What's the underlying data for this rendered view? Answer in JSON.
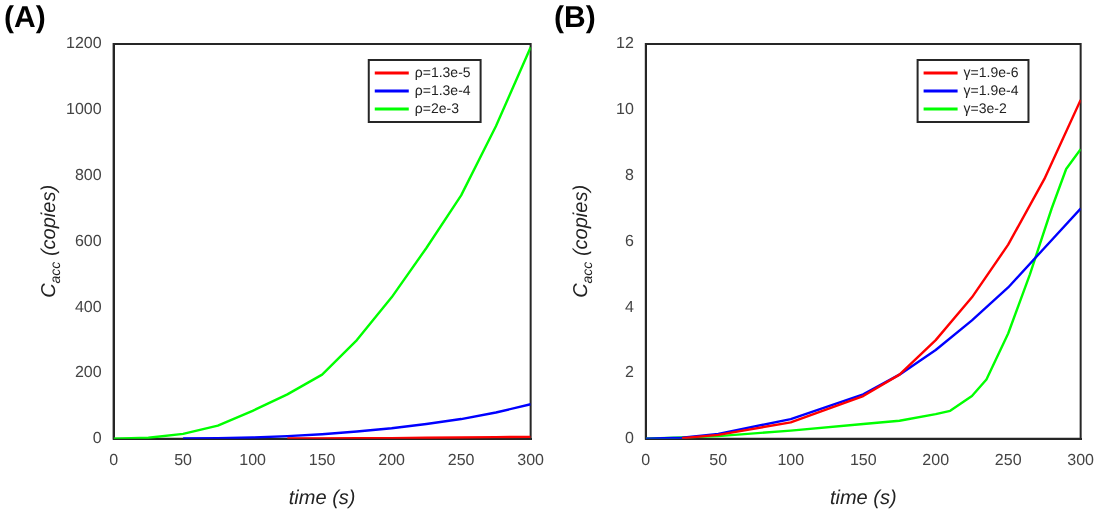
{
  "chart_data": [
    {
      "type": "line",
      "title": "(A)",
      "xlabel": "time (s)",
      "ylabel": "C$_{acc}$ (copies)",
      "xlim": [
        0,
        300
      ],
      "xticks": [
        0,
        50,
        100,
        150,
        200,
        250,
        300
      ],
      "ylim": [
        0,
        1200
      ],
      "yticks": [
        0,
        200,
        400,
        600,
        800,
        1000,
        1200
      ],
      "grid": false,
      "legend": "top right",
      "marker": "none",
      "line_style": "solid",
      "x": [
        0,
        25,
        50,
        75,
        100,
        125,
        150,
        175,
        200,
        225,
        250,
        275,
        300
      ],
      "series": [
        {
          "name": "ρ=1.3e-5",
          "color": "#ff0000",
          "values": [
            null,
            null,
            null,
            null,
            null,
            1,
            1,
            2,
            2,
            3,
            4,
            5,
            6
          ]
        },
        {
          "name": "ρ=1.3e-4",
          "color": "#0000ff",
          "values": [
            null,
            null,
            1,
            2,
            4,
            8,
            14,
            22,
            32,
            45,
            60,
            80,
            105
          ]
        },
        {
          "name": "ρ=2e-3",
          "color": "#00ff00",
          "values": [
            0,
            3,
            15,
            40,
            85,
            135,
            195,
            300,
            430,
            580,
            740,
            950,
            1190
          ]
        }
      ]
    },
    {
      "type": "line",
      "title": "(B)",
      "xlabel": "time (s)",
      "ylabel": "C$_{acc}$ (copies)",
      "xlim": [
        0,
        300
      ],
      "xticks": [
        0,
        50,
        100,
        150,
        200,
        250,
        300
      ],
      "ylim": [
        0,
        12
      ],
      "yticks": [
        0,
        2,
        4,
        6,
        8,
        10,
        12
      ],
      "grid": false,
      "legend": "top right",
      "marker": "none",
      "line_style": "solid",
      "series": [
        {
          "name": "γ=1.9e-6",
          "color": "#ff0000",
          "x": [
            25,
            50,
            100,
            150,
            175,
            200,
            225,
            250,
            275,
            300
          ],
          "values": [
            0.02,
            0.12,
            0.5,
            1.3,
            1.95,
            3.0,
            4.3,
            5.9,
            7.9,
            10.3
          ]
        },
        {
          "name": "γ=1.9e-4",
          "color": "#0000ff",
          "x": [
            0,
            25,
            50,
            100,
            150,
            175,
            200,
            225,
            250,
            275,
            300
          ],
          "values": [
            0,
            0.03,
            0.15,
            0.6,
            1.35,
            1.95,
            2.7,
            3.6,
            4.6,
            5.8,
            7.0
          ]
        },
        {
          "name": "γ=3e-2",
          "color": "#00ff00",
          "x": [
            0,
            50,
            100,
            150,
            175,
            200,
            210,
            225,
            235,
            250,
            265,
            280,
            290,
            300
          ],
          "values": [
            0,
            0.08,
            0.25,
            0.45,
            0.55,
            0.75,
            0.85,
            1.3,
            1.8,
            3.2,
            5,
            7,
            8.2,
            8.8
          ]
        }
      ]
    }
  ]
}
